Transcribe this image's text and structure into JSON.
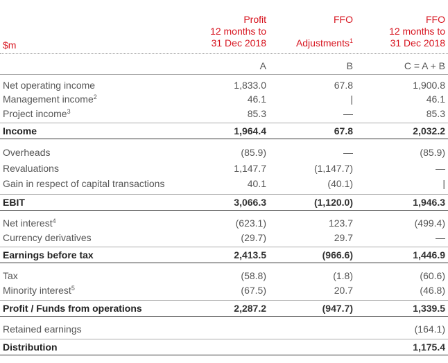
{
  "header": {
    "unit": "$m",
    "col_a": {
      "line1": "Profit",
      "line2": "12 months to",
      "line3": "31 Dec 2018",
      "letter": "A"
    },
    "col_b": {
      "line1": "FFO",
      "line3": "Adjustments",
      "sup": "1",
      "letter": "B"
    },
    "col_c": {
      "line1": "FFO",
      "line2": "12 months to",
      "line3": "31 Dec 2018",
      "letter": "C = A + B"
    }
  },
  "rows": [
    {
      "label": "Net operating income",
      "sup": "",
      "a": "1,833.0",
      "b": "67.8",
      "c": "1,900.8"
    },
    {
      "label": "Management income",
      "sup": "2",
      "a": "46.1",
      "b": "|",
      "c": "46.1"
    },
    {
      "label": "Project income",
      "sup": "3",
      "a": "85.3",
      "b": "—",
      "c": "85.3"
    },
    {
      "label": "Income",
      "sup": "",
      "a": "1,964.4",
      "b": "67.8",
      "c": "2,032.2"
    },
    {
      "label": "Overheads",
      "sup": "",
      "a": "(85.9)",
      "b": "—",
      "c": "(85.9)"
    },
    {
      "label": "Revaluations",
      "sup": "",
      "a": "1,147.7",
      "b": "(1,147.7)",
      "c": "—"
    },
    {
      "label": "Gain in respect of capital transactions",
      "sup": "",
      "a": "40.1",
      "b": "(40.1)",
      "c": "|"
    },
    {
      "label": "EBIT",
      "sup": "",
      "a": "3,066.3",
      "b": "(1,120.0)",
      "c": "1,946.3"
    },
    {
      "label": "Net interest",
      "sup": "4",
      "a": "(623.1)",
      "b": "123.7",
      "c": "(499.4)"
    },
    {
      "label": "Currency derivatives",
      "sup": "",
      "a": "(29.7)",
      "b": "29.7",
      "c": "—"
    },
    {
      "label": "Earnings before tax",
      "sup": "",
      "a": "2,413.5",
      "b": "(966.6)",
      "c": "1,446.9"
    },
    {
      "label": "Tax",
      "sup": "",
      "a": "(58.8)",
      "b": "(1.8)",
      "c": "(60.6)"
    },
    {
      "label": "Minority interest",
      "sup": "5",
      "a": "(67.5)",
      "b": "20.7",
      "c": "(46.8)"
    },
    {
      "label": "Profit / Funds from operations",
      "sup": "",
      "a": "2,287.2",
      "b": "(947.7)",
      "c": "1,339.5"
    },
    {
      "label": "Retained earnings",
      "sup": "",
      "a": "",
      "b": "",
      "c": "(164.1)"
    },
    {
      "label": "Distribution",
      "sup": "",
      "a": "",
      "b": "",
      "c": "1,175.4"
    }
  ],
  "colors": {
    "accent": "#d7141f"
  }
}
